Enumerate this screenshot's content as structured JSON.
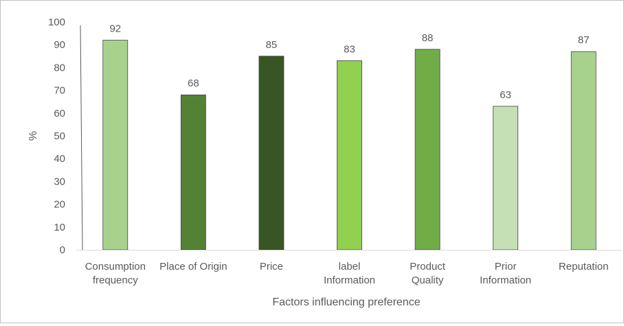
{
  "chart_data": {
    "type": "bar",
    "title": "",
    "xlabel": "Factors influencing preference",
    "ylabel": "%",
    "ylim": [
      0,
      100
    ],
    "yticks": [
      0,
      10,
      20,
      30,
      40,
      50,
      60,
      70,
      80,
      90,
      100
    ],
    "grid": false,
    "legend": "none",
    "categories": [
      [
        "Consumption",
        "frequency"
      ],
      [
        "Place of Origin"
      ],
      [
        "Price"
      ],
      [
        "label",
        "Information"
      ],
      [
        "Product",
        "Quality"
      ],
      [
        "Prior",
        "Information"
      ],
      [
        "Reputation"
      ]
    ],
    "values": [
      92,
      68,
      85,
      83,
      88,
      63,
      87
    ],
    "colors": [
      "#a9d18e",
      "#548235",
      "#375623",
      "#92d050",
      "#70ad47",
      "#c5e0b4",
      "#a9d18e"
    ],
    "outline_color": "#404040",
    "axis_color": "#595959"
  }
}
